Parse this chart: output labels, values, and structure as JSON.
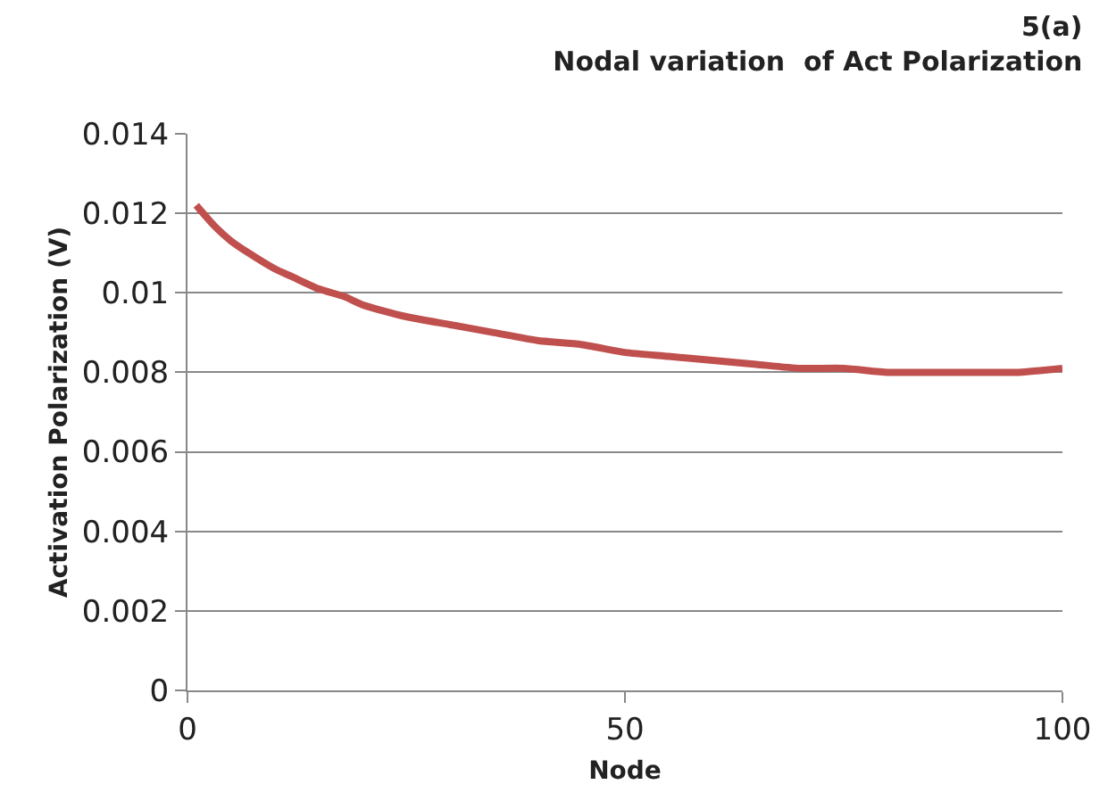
{
  "chart_data": {
    "type": "line",
    "title": "5(a)\nNodal variation  of Act Polarization",
    "xlabel": "Node",
    "ylabel": "Activation Polarization (V)",
    "x": [
      1,
      3,
      5,
      7,
      10,
      12,
      15,
      18,
      20,
      25,
      30,
      35,
      40,
      45,
      50,
      55,
      60,
      65,
      70,
      75,
      80,
      85,
      90,
      95,
      100
    ],
    "series": [
      {
        "color": "#c0504d",
        "values": [
          0.0122,
          0.0117,
          0.0113,
          0.011,
          0.0106,
          0.0104,
          0.0101,
          0.0099,
          0.0097,
          0.0094,
          0.0092,
          0.009,
          0.0088,
          0.0087,
          0.0085,
          0.0084,
          0.0083,
          0.0082,
          0.0081,
          0.0081,
          0.008,
          0.008,
          0.008,
          0.008,
          0.0081
        ]
      }
    ],
    "xlim": [
      0,
      100
    ],
    "xticks": [
      0,
      50,
      100
    ],
    "ylim": [
      0,
      0.014
    ],
    "yticks": [
      0,
      0.002,
      0.004,
      0.006,
      0.008,
      0.01,
      0.012,
      0.014
    ],
    "grid": "y",
    "marker": "none",
    "line_style": "solid"
  }
}
